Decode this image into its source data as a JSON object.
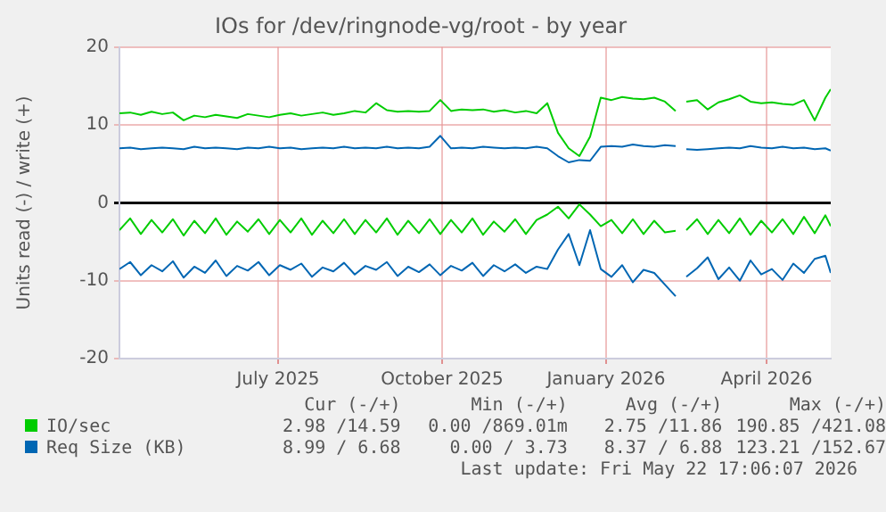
{
  "chart_data": {
    "type": "line",
    "title": "IOs for /dev/ringnode-vg/root - by year",
    "ylabel": "Units read (-) / write (+)",
    "x": [
      "2025-04-18",
      "2025-04-24",
      "2025-04-30",
      "2025-05-06",
      "2025-05-12",
      "2025-05-18",
      "2025-05-24",
      "2025-05-30",
      "2025-06-05",
      "2025-06-11",
      "2025-06-17",
      "2025-06-23",
      "2025-06-29",
      "2025-07-05",
      "2025-07-11",
      "2025-07-17",
      "2025-07-23",
      "2025-07-29",
      "2025-08-04",
      "2025-08-10",
      "2025-08-16",
      "2025-08-22",
      "2025-08-28",
      "2025-09-03",
      "2025-09-09",
      "2025-09-15",
      "2025-09-21",
      "2025-09-27",
      "2025-10-03",
      "2025-10-09",
      "2025-10-15",
      "2025-10-21",
      "2025-10-27",
      "2025-11-02",
      "2025-11-08",
      "2025-11-14",
      "2025-11-20",
      "2025-11-26",
      "2025-12-02",
      "2025-12-08",
      "2025-12-14",
      "2025-12-20",
      "2025-12-26",
      "2026-01-01",
      "2026-01-07",
      "2026-01-13",
      "2026-01-19",
      "2026-01-25",
      "2026-01-31",
      "2026-02-06",
      "2026-02-12",
      "2026-02-18",
      "2026-02-24",
      "2026-02-27",
      "2026-03-02",
      "2026-03-08",
      "2026-03-14",
      "2026-03-20",
      "2026-03-26",
      "2026-04-01",
      "2026-04-07",
      "2026-04-13",
      "2026-04-19",
      "2026-04-25",
      "2026-05-01",
      "2026-05-07",
      "2026-05-13",
      "2026-05-19",
      "2026-05-22"
    ],
    "series": [
      {
        "name": "IO/sec",
        "color": "#00cc00",
        "values": [
          11.5,
          11.6,
          11.3,
          11.7,
          11.4,
          11.6,
          10.6,
          11.2,
          11.0,
          11.3,
          11.1,
          10.9,
          11.4,
          11.2,
          11.0,
          11.3,
          11.5,
          11.2,
          11.4,
          11.6,
          11.3,
          11.5,
          11.8,
          11.6,
          12.8,
          11.9,
          11.7,
          11.8,
          11.7,
          11.8,
          13.2,
          11.8,
          12.0,
          11.9,
          12.0,
          11.7,
          11.9,
          11.6,
          11.8,
          11.5,
          12.8,
          9.0,
          7.0,
          6.0,
          8.5,
          13.5,
          13.2,
          13.6,
          13.4,
          13.3,
          13.5,
          13.0,
          11.8,
          null,
          13.0,
          13.2,
          12.0,
          12.9,
          13.3,
          13.8,
          13.0,
          12.8,
          12.9,
          12.7,
          12.6,
          13.2,
          10.6,
          13.5,
          14.6
        ]
      },
      {
        "color": "#00cc00",
        "values": [
          -3.5,
          -2.0,
          -4.0,
          -2.2,
          -3.8,
          -2.1,
          -4.2,
          -2.3,
          -3.9,
          -2.0,
          -4.1,
          -2.4,
          -3.7,
          -2.1,
          -4.0,
          -2.2,
          -3.8,
          -2.0,
          -4.1,
          -2.3,
          -3.9,
          -2.1,
          -4.0,
          -2.2,
          -3.8,
          -2.0,
          -4.1,
          -2.3,
          -3.9,
          -2.1,
          -4.0,
          -2.2,
          -3.8,
          -2.0,
          -4.1,
          -2.4,
          -3.7,
          -2.1,
          -4.0,
          -2.2,
          -1.5,
          -0.5,
          -2.0,
          -0.2,
          -1.5,
          -3.0,
          -2.2,
          -3.9,
          -2.1,
          -4.0,
          -2.3,
          -3.8,
          -3.6,
          null,
          -3.5,
          -2.1,
          -4.0,
          -2.2,
          -3.9,
          -2.0,
          -4.1,
          -2.3,
          -3.8,
          -2.1,
          -4.0,
          -1.8,
          -3.9,
          -1.6,
          -3.0
        ]
      },
      {
        "name": "Req Size (KB)",
        "color": "#0066b3",
        "values": [
          7.0,
          7.1,
          6.9,
          7.0,
          7.1,
          7.0,
          6.9,
          7.2,
          7.0,
          7.1,
          7.0,
          6.9,
          7.1,
          7.0,
          7.2,
          7.0,
          7.1,
          6.9,
          7.0,
          7.1,
          7.0,
          7.2,
          7.0,
          7.1,
          7.0,
          7.2,
          7.0,
          7.1,
          7.0,
          7.2,
          8.6,
          7.0,
          7.1,
          7.0,
          7.2,
          7.1,
          7.0,
          7.1,
          7.0,
          7.2,
          7.0,
          6.0,
          5.2,
          5.5,
          5.4,
          7.2,
          7.3,
          7.2,
          7.5,
          7.3,
          7.2,
          7.4,
          7.3,
          null,
          6.9,
          6.8,
          6.9,
          7.0,
          7.1,
          7.0,
          7.3,
          7.1,
          7.0,
          7.2,
          7.0,
          7.1,
          6.9,
          7.0,
          6.7
        ]
      },
      {
        "color": "#0066b3",
        "values": [
          -8.5,
          -7.6,
          -9.3,
          -8.0,
          -8.8,
          -7.5,
          -9.6,
          -8.2,
          -9.0,
          -7.4,
          -9.4,
          -8.1,
          -8.7,
          -7.6,
          -9.3,
          -8.0,
          -8.6,
          -7.8,
          -9.5,
          -8.3,
          -8.8,
          -7.7,
          -9.2,
          -8.1,
          -8.6,
          -7.6,
          -9.4,
          -8.2,
          -8.9,
          -7.9,
          -9.3,
          -8.1,
          -8.7,
          -7.7,
          -9.4,
          -8.0,
          -8.8,
          -7.9,
          -9.0,
          -8.2,
          -8.5,
          -6.0,
          -4.0,
          -8.0,
          -3.5,
          -8.5,
          -9.5,
          -8.0,
          -10.2,
          -8.6,
          -9.0,
          -10.5,
          -12.0,
          null,
          -9.5,
          -8.4,
          -7.0,
          -9.8,
          -8.3,
          -10.0,
          -7.4,
          -9.2,
          -8.5,
          -9.9,
          -7.8,
          -9.0,
          -7.2,
          -6.8,
          -9.0
        ]
      }
    ],
    "xlim": [
      "2025-04-18",
      "2026-05-22"
    ],
    "xticks": [
      {
        "value": "2025-07-16",
        "label": "July 2025"
      },
      {
        "value": "2025-10-16",
        "label": "October 2025"
      },
      {
        "value": "2026-01-16",
        "label": "January 2026"
      },
      {
        "value": "2026-04-16",
        "label": "April 2026"
      }
    ],
    "ylim": [
      -20,
      20
    ],
    "yticks": [
      -20,
      -10,
      0,
      10,
      20
    ],
    "grid": true,
    "legend": "bottom",
    "marker": "none",
    "line_style": "solid",
    "annotations": [
      "Cur (-/+)",
      "Min (-/+)",
      "Avg (-/+)",
      "Max (-/+)",
      "2.98 /14.59",
      "0.00 /869.01m",
      "2.75 /11.86",
      "190.85 /421.08",
      "8.99 / 6.68",
      "0.00 / 3.73",
      "8.37 / 6.88",
      "123.21 /152.67",
      "Last update: Fri May 22 17:06:07 2026"
    ]
  }
}
